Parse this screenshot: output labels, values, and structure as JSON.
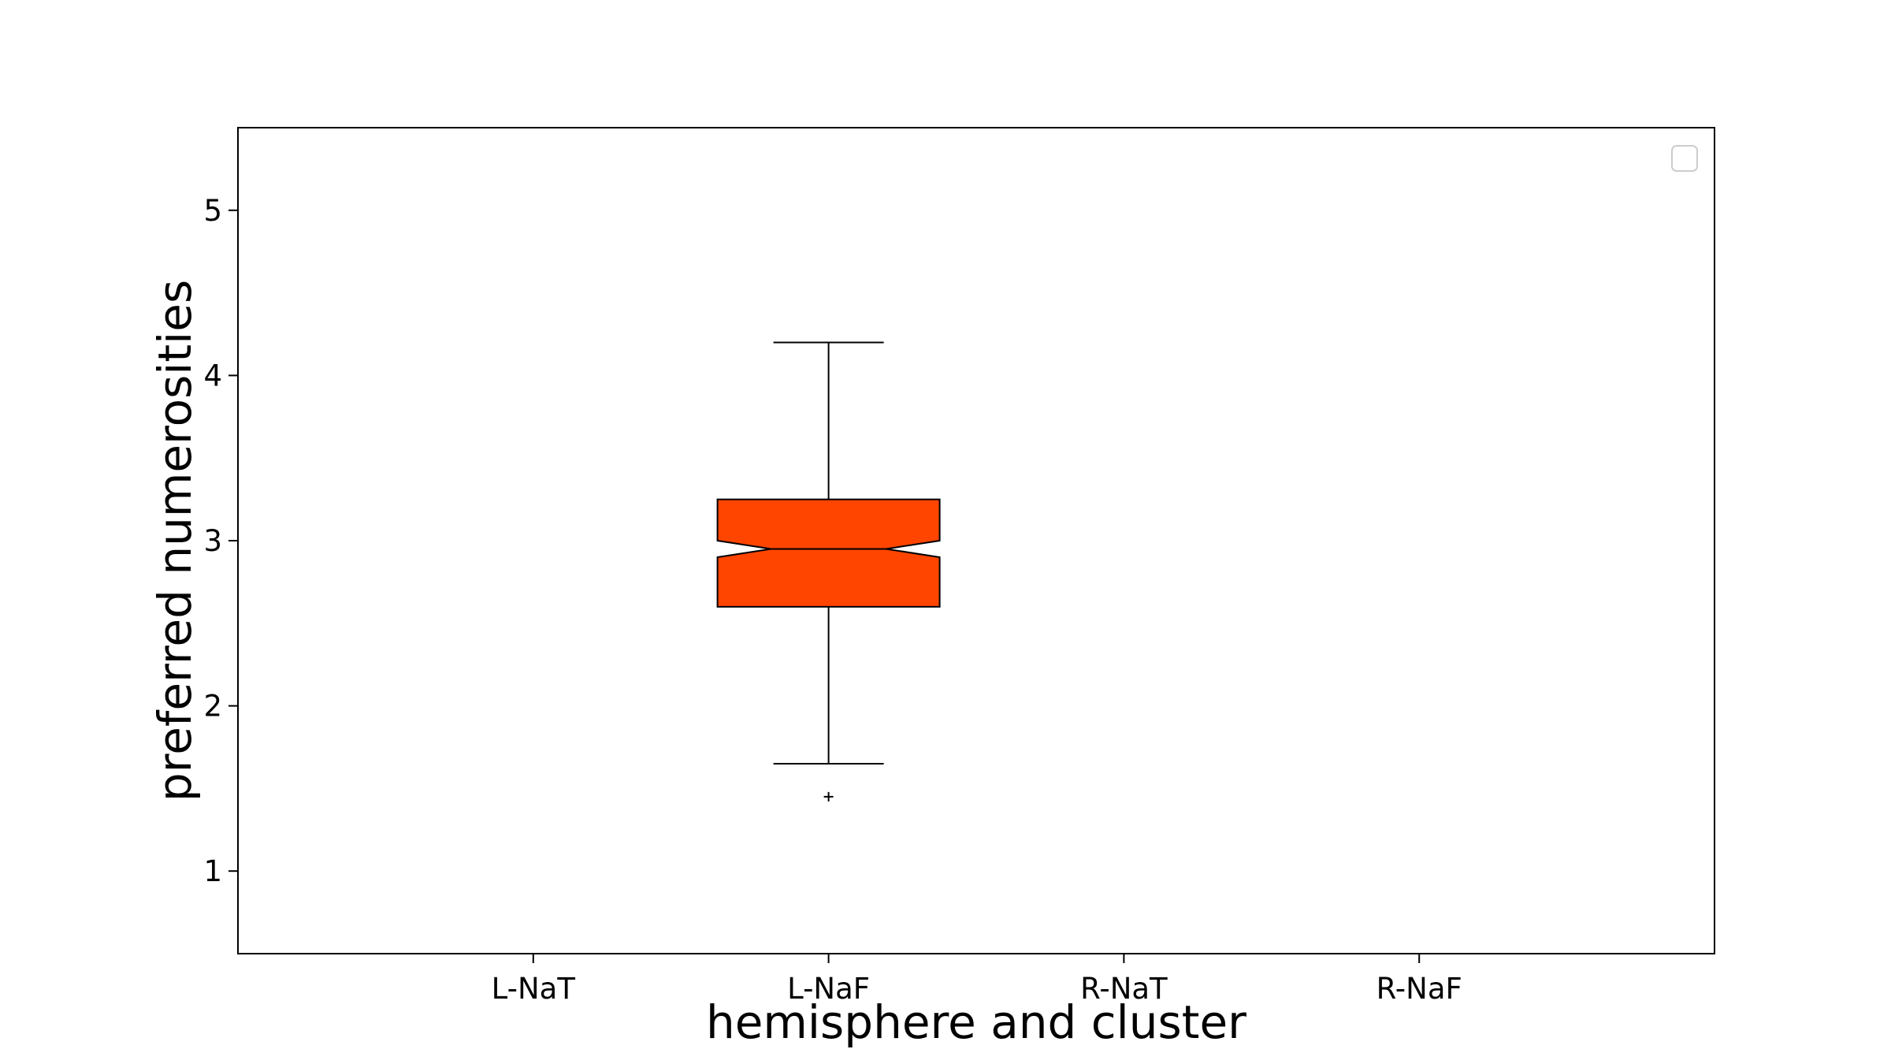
{
  "chart_data": {
    "type": "boxplot",
    "xlabel": "hemisphere and cluster",
    "ylabel": "preferred numerosities",
    "categories": [
      "L-NaT",
      "L-NaF",
      "R-NaT",
      "R-NaF"
    ],
    "ylim": [
      0.5,
      5.5
    ],
    "yticks": [
      1,
      2,
      3,
      4,
      5
    ],
    "notched": true,
    "box_color": "#ff4500",
    "legend": {
      "placement": "top-right",
      "entries": []
    },
    "grid": false,
    "boxes": [
      {
        "category": "L-NaF",
        "whisker_low": 1.65,
        "q1": 2.6,
        "median": 2.95,
        "q3": 3.25,
        "whisker_high": 4.2,
        "notch_low": 2.9,
        "notch_high": 3.0,
        "outliers": [
          1.45
        ]
      }
    ]
  }
}
